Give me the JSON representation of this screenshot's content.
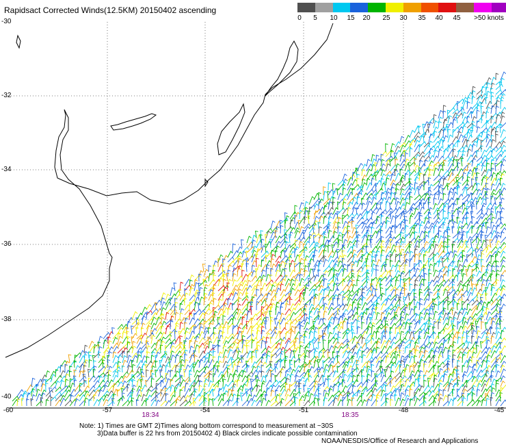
{
  "title": "Rapidsact Corrected Winds(12.5KM) 20150402 ascending",
  "legend": {
    "colors": [
      "#505050",
      "#a0a0a0",
      "#00c8f0",
      "#1a62dc",
      "#00b400",
      "#f0f000",
      "#f0a000",
      "#f05000",
      "#e01010",
      "#906040",
      "#f000f0",
      "#a000c0",
      "#6a00a8"
    ],
    "labels": [
      "0",
      "5",
      "10",
      "15",
      "20",
      "25",
      "30",
      "35",
      "40",
      "45",
      ">50 knots"
    ]
  },
  "axes": {
    "lat_labels": [
      "-30",
      "-32",
      "-34",
      "-36",
      "-38",
      "-40"
    ],
    "lon_labels": [
      "-60",
      "-57",
      "-54",
      "-51",
      "-48",
      "-45"
    ]
  },
  "times": [
    "18:34",
    "18:35"
  ],
  "notes": {
    "line1": "Note: 1) Times are GMT 2)Times along bottom correspond to measurement at ~30S",
    "line2": "3)Data buffer is 22 hrs from 20150402 4) Black circles indicate possible contamination",
    "credit": "NOAA/NESDIS/Office of Research and Applications"
  }
}
